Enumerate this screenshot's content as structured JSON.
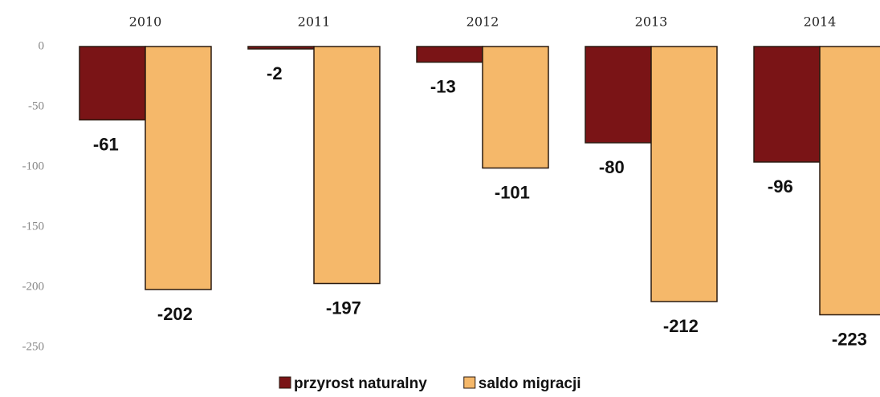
{
  "chart_data": {
    "type": "bar",
    "categories": [
      "2010",
      "2011",
      "2012",
      "2013",
      "2014"
    ],
    "series": [
      {
        "name": "przyrost naturalny",
        "color": "#7a1416",
        "values": [
          -61,
          -2,
          -13,
          -80,
          -96
        ]
      },
      {
        "name": "saldo migracji",
        "color": "#f5b86a",
        "values": [
          -202,
          -197,
          -101,
          -212,
          -223
        ]
      }
    ],
    "ylim": [
      -250,
      0
    ],
    "yticks": [
      0,
      -50,
      -100,
      -150,
      -200,
      -250
    ],
    "grid": false,
    "legend": "bottom"
  }
}
